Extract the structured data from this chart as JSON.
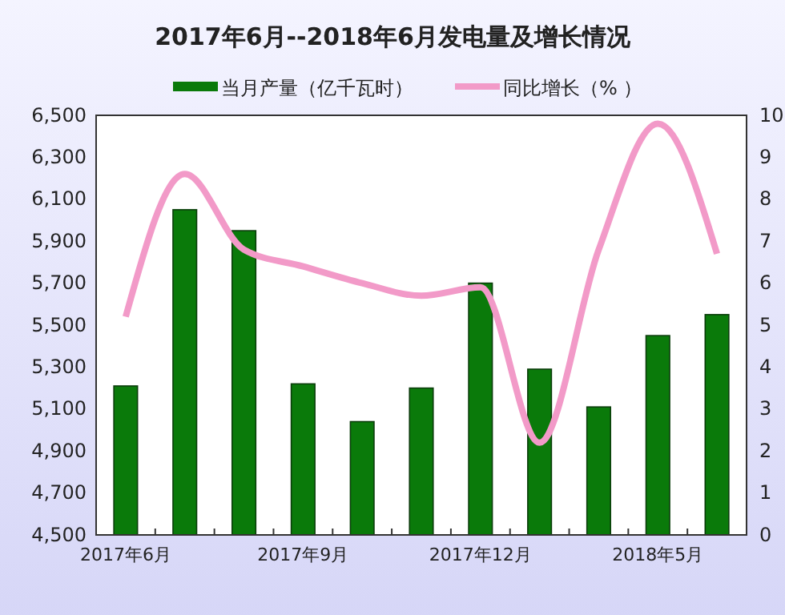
{
  "chart_data": {
    "type": "bar",
    "title": "2017年6月--2018年6月发电量及增长情况",
    "categories": [
      "2017年6月",
      null,
      null,
      "2017年9月",
      null,
      null,
      "2017年12月",
      null,
      null,
      "2018年5月",
      null
    ],
    "series": [
      {
        "name": "当月产量（亿千瓦时）",
        "color": "#0a7a0a",
        "values": [
          5210,
          6050,
          5950,
          5220,
          5040,
          5200,
          5700,
          5290,
          5110,
          5450,
          5550
        ]
      },
      {
        "name": "同比增长（% ）",
        "type": "line",
        "axis": "y2",
        "color": "#f29ac8",
        "values": [
          5.2,
          8.6,
          6.8,
          6.4,
          6.0,
          5.7,
          5.9,
          2.2,
          6.8,
          9.8,
          6.7
        ]
      }
    ],
    "ylim": [
      4500,
      6500
    ],
    "yticks": [
      {
        "value": 4500,
        "label": "4,500"
      },
      {
        "value": 4700,
        "label": "4,700"
      },
      {
        "value": 4900,
        "label": "4,900"
      },
      {
        "value": 5100,
        "label": "5,100"
      },
      {
        "value": 5300,
        "label": "5,300"
      },
      {
        "value": 5500,
        "label": "5,500"
      },
      {
        "value": 5700,
        "label": "5,700"
      },
      {
        "value": 5900,
        "label": "5,900"
      },
      {
        "value": 6100,
        "label": "6,100"
      },
      {
        "value": 6300,
        "label": "6,300"
      },
      {
        "value": 6500,
        "label": "6,500"
      }
    ],
    "y2lim": [
      0,
      10
    ],
    "y2ticks": [
      0,
      1,
      2,
      3,
      4,
      5,
      6,
      7,
      8,
      9,
      10
    ],
    "legend": "top",
    "grid": false,
    "line_style": "solid",
    "marker": "none"
  }
}
